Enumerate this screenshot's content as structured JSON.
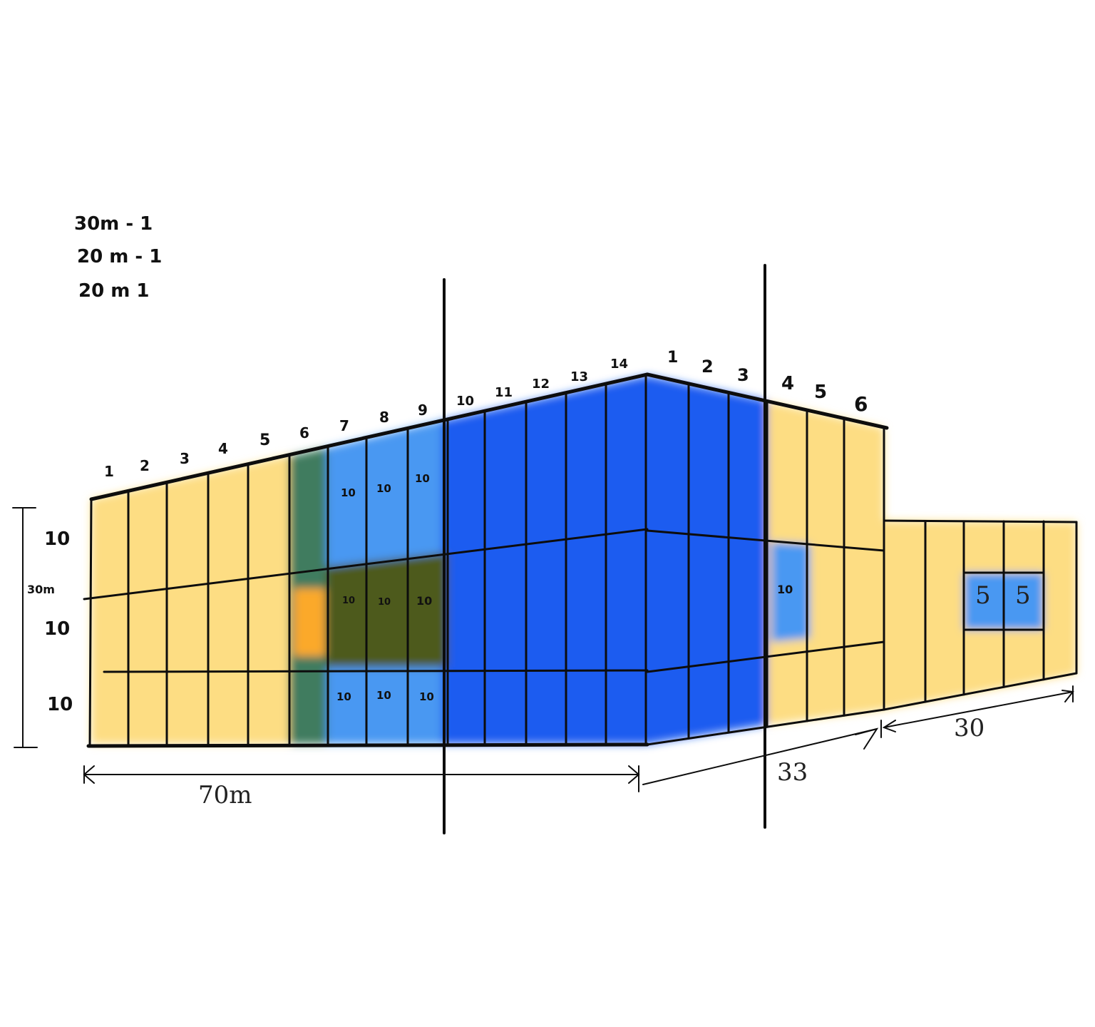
{
  "notes": [
    "30m - 1",
    "20 m - 1",
    "20 m 1"
  ],
  "column_numbers_front": [
    "1",
    "2",
    "3",
    "4",
    "5",
    "6",
    "7",
    "8",
    "9",
    "10",
    "11",
    "12",
    "13",
    "14"
  ],
  "column_numbers_side": [
    "1",
    "2",
    "3",
    "4",
    "5",
    "6"
  ],
  "row_heights": [
    "10",
    "10",
    "10"
  ],
  "height_dim": "30m",
  "cell_values_front_top": [
    "10",
    "10",
    "10"
  ],
  "cell_values_front_mid": [
    "10",
    "10",
    "10"
  ],
  "cell_values_front_bottom": [
    "10",
    "10",
    "10"
  ],
  "cell_value_side": "10",
  "annex_cells": [
    "5",
    "5"
  ],
  "dimensions": {
    "front_length": "70m",
    "side_length": "33",
    "annex_length": "30"
  },
  "colors": {
    "yellow": "#fddd83",
    "light_blue": "#4a98f2",
    "blue": "#1c5cf0",
    "green": "#3f7c5e",
    "olive": "#4d5a1c",
    "orange": "#fba92a"
  }
}
